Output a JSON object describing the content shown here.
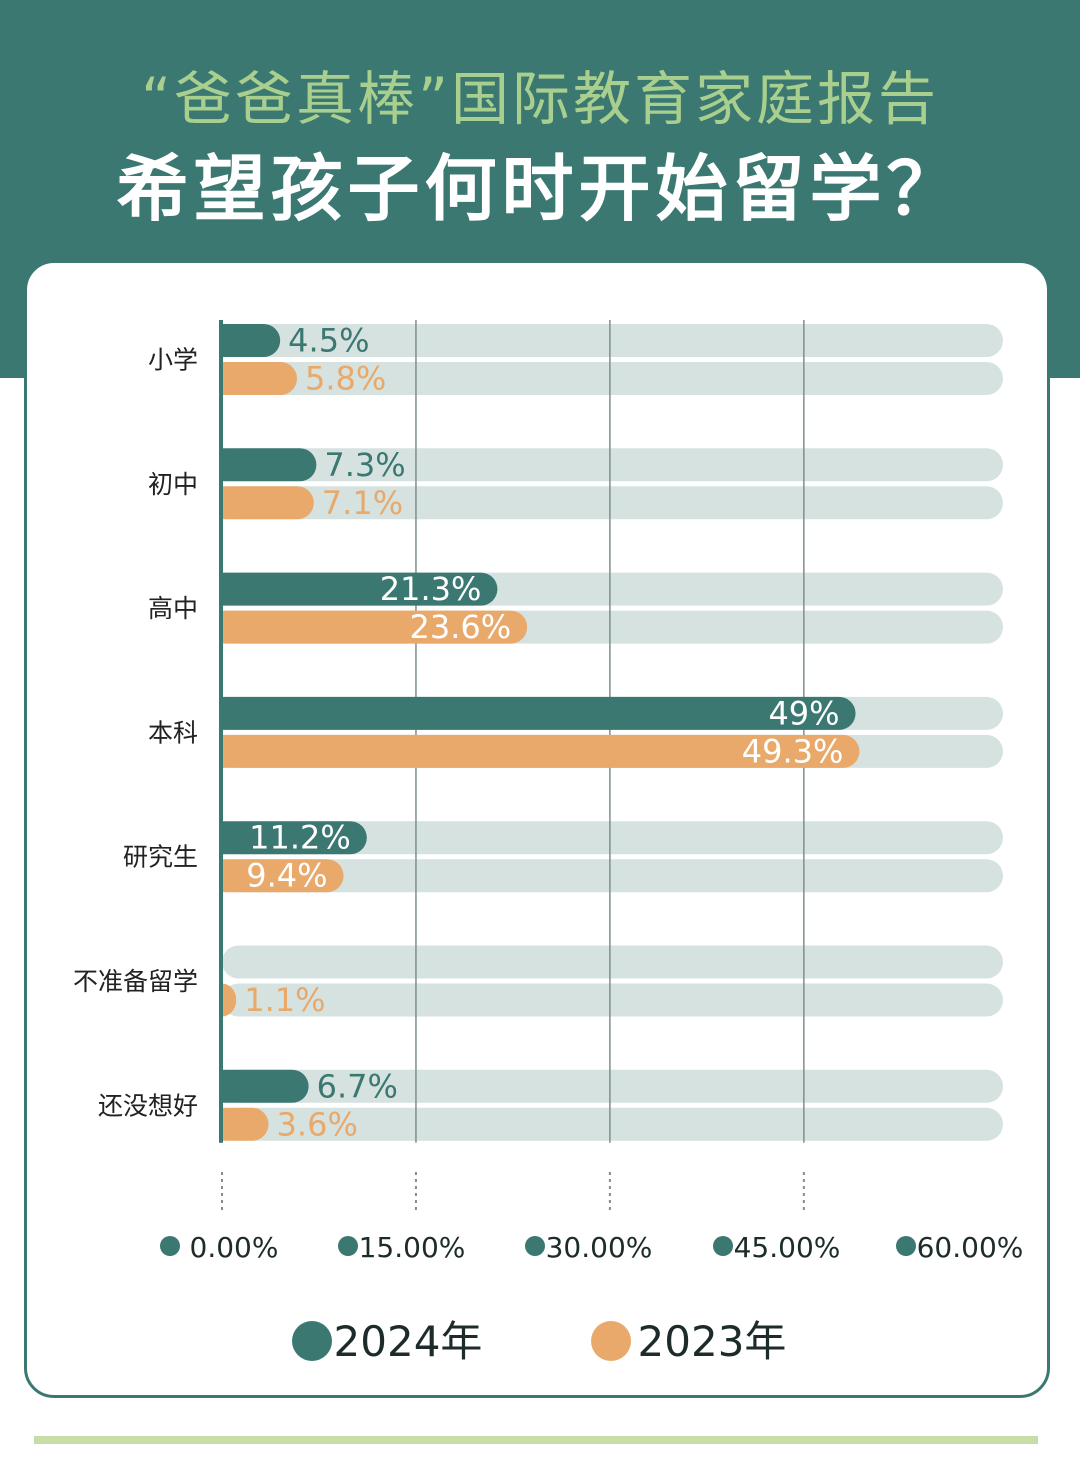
{
  "header": {
    "subtitle": "“爸爸真棒”国际教育家庭报告",
    "title": "希望孩子何时开始留学？"
  },
  "colors": {
    "header_bg": "#3b7872",
    "series_2024": "#3b7872",
    "series_2023": "#e8a96a",
    "track": "#d6e2e0",
    "subtitle": "#a9cf8f"
  },
  "chart_data": {
    "type": "bar",
    "orientation": "horizontal",
    "categories": [
      "小学",
      "初中",
      "高中",
      "本科",
      "研究生",
      "不准备留学",
      "还没想好"
    ],
    "series": [
      {
        "name": "2024年",
        "values": [
          4.5,
          7.3,
          21.3,
          49,
          11.2,
          0,
          6.7
        ],
        "labels": [
          "4.5%",
          "7.3%",
          "21.3%",
          "49%",
          "11.2%",
          "",
          "6.7%"
        ]
      },
      {
        "name": "2023年",
        "values": [
          5.8,
          7.1,
          23.6,
          49.3,
          9.4,
          1.1,
          3.6
        ],
        "labels": [
          "5.8%",
          "7.1%",
          "23.6%",
          "49.3%",
          "9.4%",
          "1.1%",
          "3.6%"
        ]
      }
    ],
    "x_ticks": [
      "0.00%",
      "15.00%",
      "30.00%",
      "45.00%",
      "60.00%"
    ],
    "xlim": [
      0,
      60
    ],
    "legend_position": "bottom"
  }
}
